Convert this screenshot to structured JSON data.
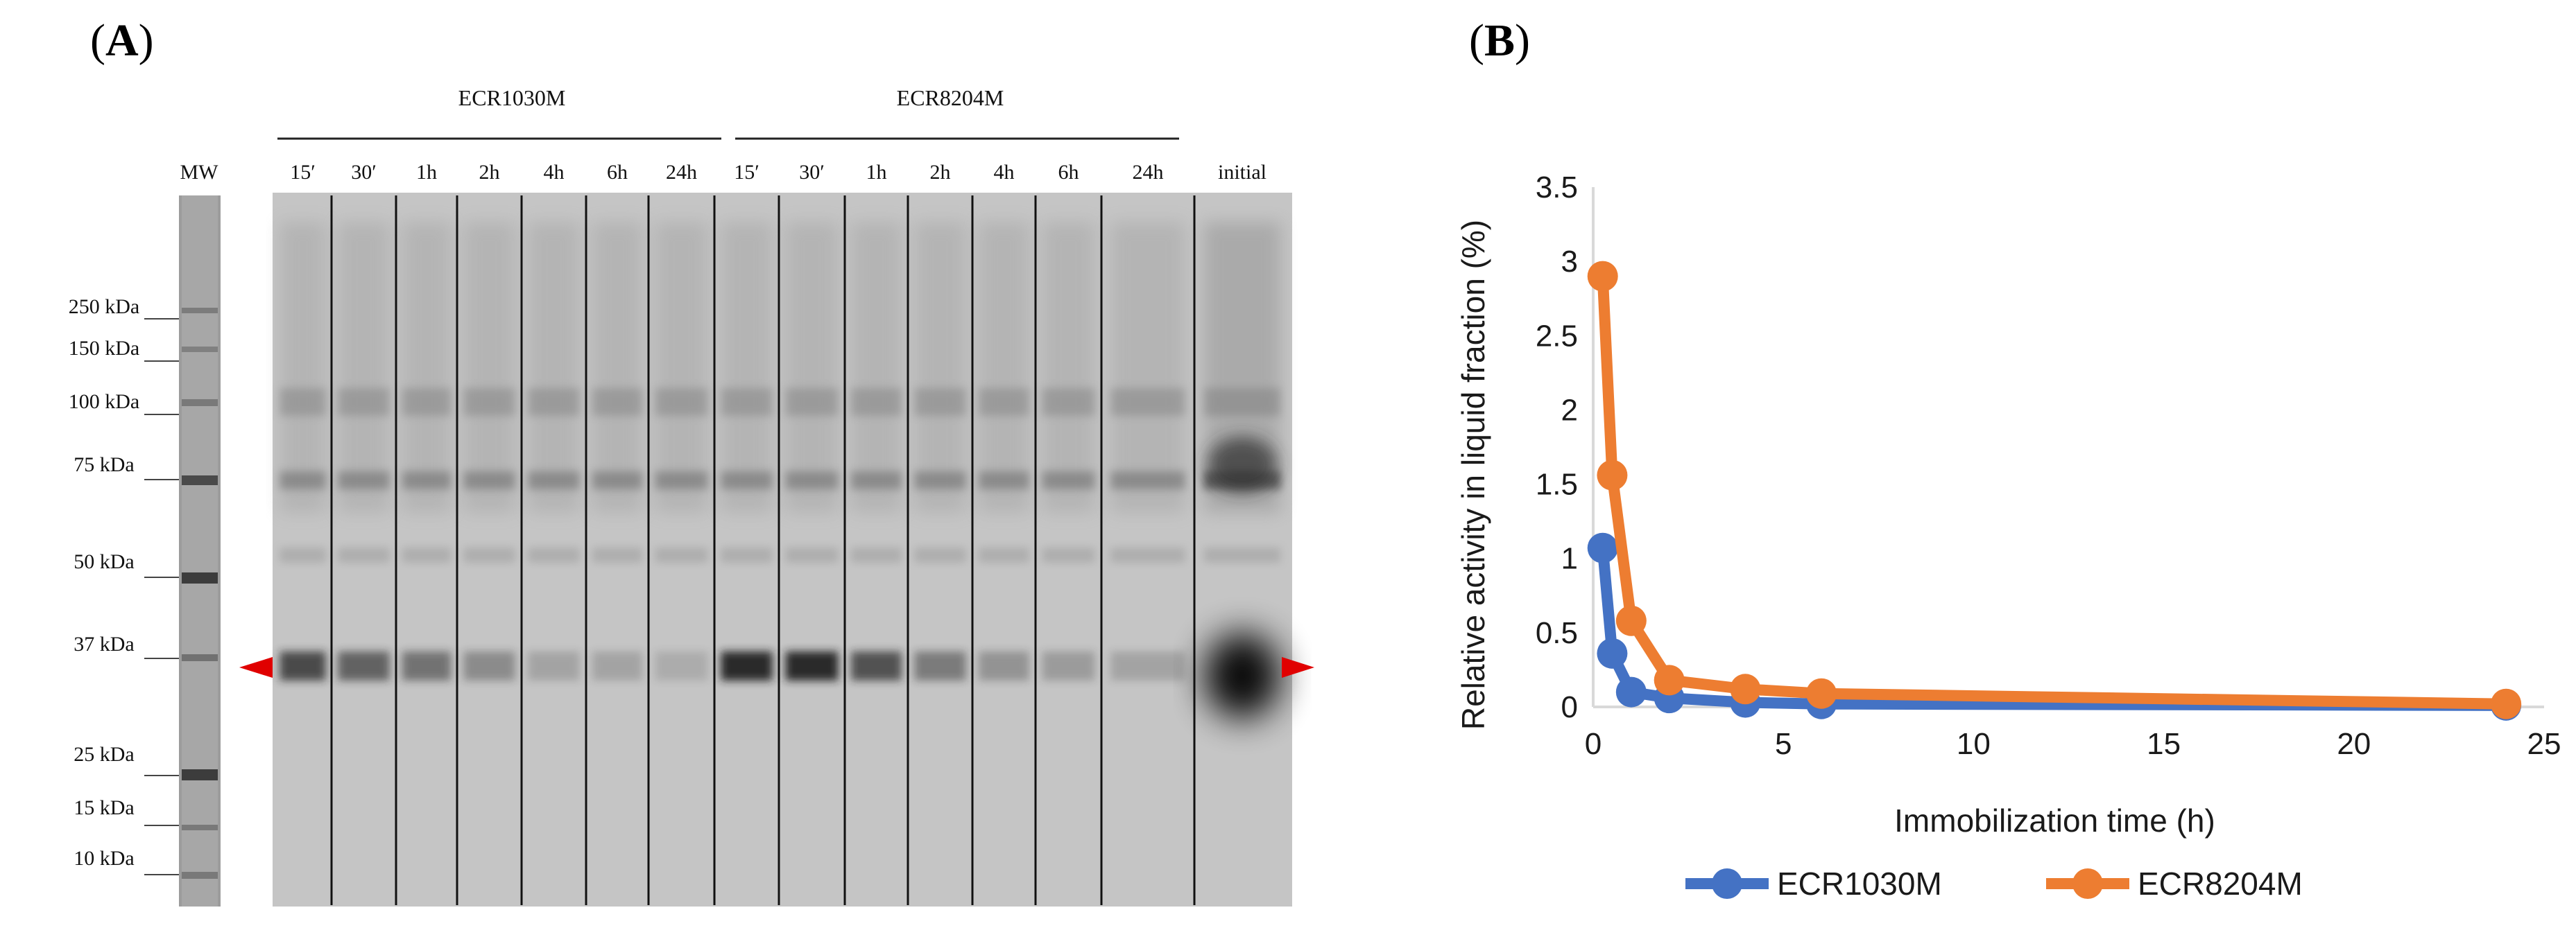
{
  "panel_a": {
    "open": "(",
    "letter": "A",
    "close": ")",
    "header_left": "ECR1030M",
    "header_right": "ECR8204M",
    "mw_label": "MW",
    "lanes": [
      "15′",
      "30′",
      "1h",
      "2h",
      "4h",
      "6h",
      "24h",
      "15′",
      "30′",
      "1h",
      "2h",
      "4h",
      "6h",
      "24h",
      "initial"
    ],
    "markers": [
      "250 kDa",
      "150 kDa",
      "100 kDa",
      "75 kDa",
      "50 kDa",
      "37 kDa",
      "25 kDa",
      "15 kDa",
      "10 kDa"
    ],
    "arrow_color": "#e00000"
  },
  "panel_b": {
    "open": "(",
    "letter": "B",
    "close": ")"
  },
  "chart_data": {
    "type": "line",
    "title": "",
    "xlabel": "Immobilization time (h)",
    "ylabel": "Relative activity in liquid fraction (%)",
    "xlim": [
      0,
      25
    ],
    "ylim": [
      0,
      3.5
    ],
    "xticks": [
      0,
      5,
      10,
      15,
      20,
      25
    ],
    "yticks": [
      0,
      0.5,
      1,
      1.5,
      2,
      2.5,
      3,
      3.5
    ],
    "xtick_labels": [
      "0",
      "5",
      "10",
      "15",
      "20",
      "25"
    ],
    "ytick_labels": [
      "0",
      "0.5",
      "1",
      "1.5",
      "2",
      "2.5",
      "3",
      "3.5"
    ],
    "grid": false,
    "legend": "bottom",
    "series": [
      {
        "name": "ECR1030M",
        "color": "#4472C4",
        "x": [
          0.25,
          0.5,
          1,
          2,
          4,
          6,
          24
        ],
        "y": [
          1.07,
          0.36,
          0.1,
          0.06,
          0.03,
          0.02,
          0.01
        ]
      },
      {
        "name": "ECR8204M",
        "color": "#ED7D31",
        "x": [
          0.25,
          0.5,
          1,
          2,
          4,
          6,
          24
        ],
        "y": [
          2.9,
          1.56,
          0.58,
          0.18,
          0.12,
          0.09,
          0.02
        ]
      }
    ]
  }
}
